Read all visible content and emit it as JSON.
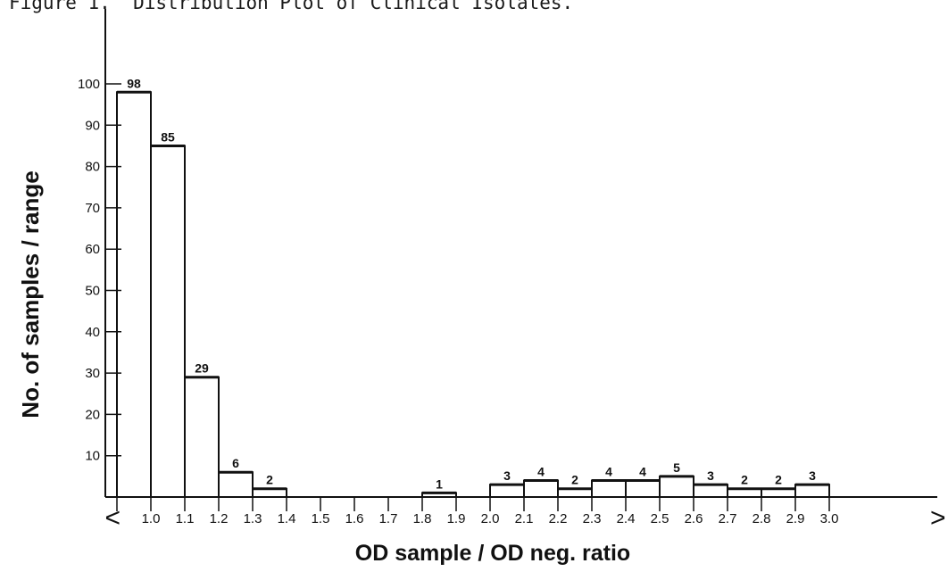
{
  "title": "Figure 1.  Distribution Plot of Clinical Isolates.",
  "chart_data": {
    "type": "bar",
    "title": "Figure 1.  Distribution Plot of Clinical Isolates.",
    "xlabel": "OD sample / OD neg. ratio",
    "ylabel": "No. of samples / range",
    "ylim": [
      0,
      100
    ],
    "yticks": [
      "10",
      "20",
      "30",
      "40",
      "50",
      "60",
      "70",
      "80",
      "90",
      "100"
    ],
    "x_tick_labels": [
      "1.0",
      "1.1",
      "1.2",
      "1.3",
      "1.4",
      "1.5",
      "1.6",
      "1.7",
      "1.8",
      "1.9",
      "2.0",
      "2.1",
      "2.2",
      "2.3",
      "2.4",
      "2.5",
      "2.6",
      "2.7",
      "2.8",
      "2.9",
      "3.0"
    ],
    "x_lower_marker": "<",
    "x_upper_marker": ">",
    "categories": [
      "<1.0",
      "1.0-1.1",
      "1.1-1.2",
      "1.2-1.3",
      "1.3-1.4",
      "1.4-1.5",
      "1.5-1.6",
      "1.6-1.7",
      "1.7-1.8",
      "1.8-1.9",
      "1.9-2.0",
      "2.0-2.1",
      "2.1-2.2",
      "2.2-2.3",
      "2.3-2.4",
      "2.4-2.5",
      "2.5-2.6",
      "2.6-2.7",
      "2.7-2.8",
      "2.8-2.9",
      "2.9-3.0",
      ">3.0"
    ],
    "values": [
      98,
      85,
      29,
      6,
      2,
      0,
      0,
      0,
      0,
      1,
      0,
      3,
      4,
      2,
      4,
      4,
      5,
      3,
      2,
      2,
      3,
      0
    ],
    "data_labels": [
      "98",
      "85",
      "29",
      "6",
      "2",
      "",
      "",
      "",
      "",
      "1",
      "",
      "3",
      "4",
      "2",
      "4",
      "4",
      "5",
      "3",
      "2",
      "2",
      "3",
      ""
    ],
    "grid": false,
    "legend": "none"
  }
}
